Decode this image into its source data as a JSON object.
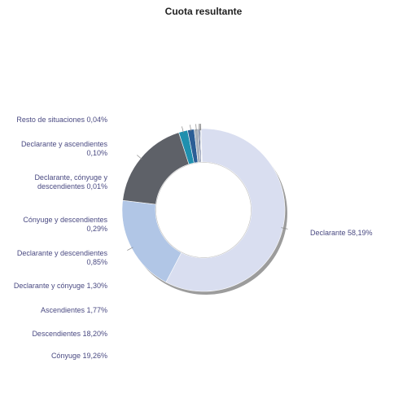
{
  "chart_data": {
    "type": "pie",
    "title": "Cuota resultante",
    "slices": [
      {
        "label": "Declarante",
        "display_label": "Declarante 58,19%",
        "value": 58.19,
        "color": "#d9def0"
      },
      {
        "label": "Cónyuge",
        "display_label": "Cónyuge 19,26%",
        "value": 19.26,
        "color": "#b1c6e6"
      },
      {
        "label": "Descendientes",
        "display_label": "Descendientes 18,20%",
        "value": 18.2,
        "color": "#5e6168"
      },
      {
        "label": "Ascendientes",
        "display_label": "Ascendientes 1,77%",
        "value": 1.77,
        "color": "#1f8fae"
      },
      {
        "label": "Declarante y cónyuge",
        "display_label": "Declarante y cónyuge 1,30%",
        "value": 1.3,
        "color": "#2c5e96"
      },
      {
        "label": "Declarante y descendientes",
        "display_label": "Declarante y descendientes 0,85%",
        "value": 0.85,
        "color": "#a9b1bc"
      },
      {
        "label": "Cónyuge y descendientes",
        "display_label": "Cónyuge y descendientes 0,29%",
        "value": 0.29,
        "color": "#3a4b78"
      },
      {
        "label": "Declarante, cónyuge y descendientes",
        "display_label": "Declarante, cónyuge y descendientes 0,01%",
        "value": 0.01,
        "color": "#7d8db3"
      },
      {
        "label": "Declarante y ascendientes",
        "display_label": "Declarante y ascendientes 0,10%",
        "value": 0.1,
        "color": "#4a6fa5"
      },
      {
        "label": "Resto de situaciones",
        "display_label": "Resto de situaciones 0,04%",
        "value": 0.04,
        "color": "#9aa3b5"
      }
    ]
  }
}
